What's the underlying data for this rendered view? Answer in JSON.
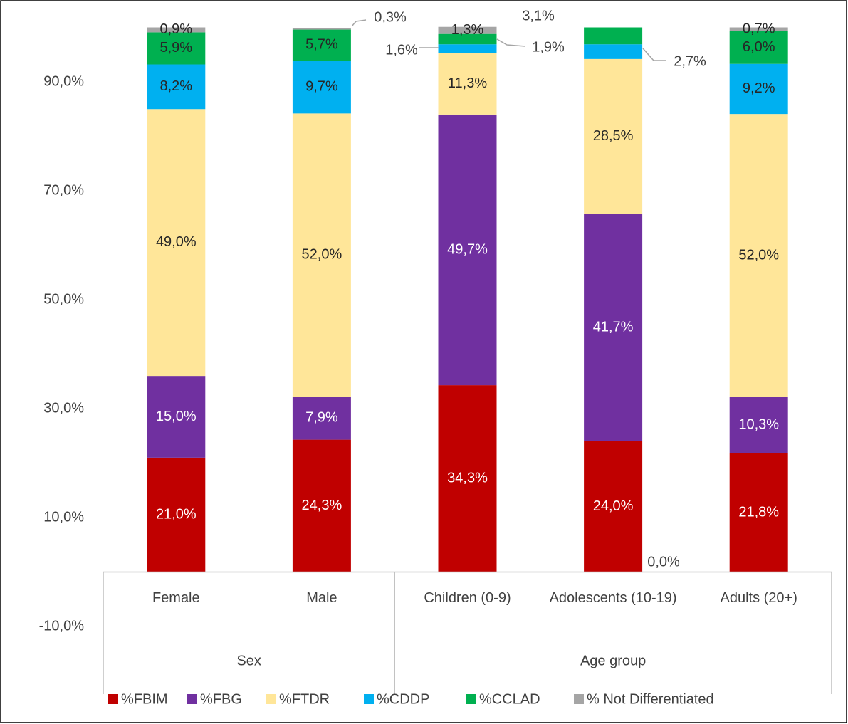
{
  "chart_data": {
    "type": "stacked-bar",
    "categories": [
      "Female",
      "Male",
      "Children (0-9)",
      "Adolescents (10-19)",
      "Adults (20+)"
    ],
    "groups": [
      "Sex",
      "Age group"
    ],
    "series": [
      {
        "name": "%FBIM",
        "color": "#c00000",
        "values": [
          21.0,
          24.3,
          34.3,
          24.0,
          21.8
        ],
        "value_labels": [
          "21,0%",
          "24,3%",
          "34,3%",
          "24,0%",
          "21,8%"
        ]
      },
      {
        "name": "%FBG",
        "color": "#7030a0",
        "values": [
          15.0,
          7.9,
          49.7,
          41.7,
          10.3
        ],
        "value_labels": [
          "15,0%",
          "7,9%",
          "49,7%",
          "41,7%",
          "10,3%"
        ]
      },
      {
        "name": "%FTDR",
        "color": "#ffe699",
        "values": [
          49.0,
          52.0,
          11.3,
          28.5,
          52.0
        ],
        "value_labels": [
          "49,0%",
          "52,0%",
          "11,3%",
          "28,5%",
          "52,0%"
        ]
      },
      {
        "name": "%CDDP",
        "color": "#00b0f0",
        "values": [
          8.2,
          9.7,
          1.6,
          2.7,
          9.2
        ],
        "value_labels": [
          "8,2%",
          "9,7%",
          "1,6%",
          "2,7%",
          "9,2%"
        ]
      },
      {
        "name": "%CCLAD",
        "color": "#00b050",
        "values": [
          5.9,
          5.7,
          1.9,
          3.1,
          6.0
        ],
        "value_labels": [
          "5,9%",
          "5,7%",
          "1,9%",
          "3,1%",
          "6,0%"
        ]
      },
      {
        "name": "% Not Differentiated",
        "color": "#a5a5a5",
        "values": [
          0.9,
          0.3,
          1.3,
          0.0,
          0.7
        ],
        "value_labels": [
          "0,9%",
          "0,3%",
          "1,3%",
          "0,0%",
          "0,7%"
        ]
      }
    ],
    "ylim": [
      -10,
      100
    ],
    "yticks": [
      {
        "value": -10,
        "label": "-10,0%"
      },
      {
        "value": 10,
        "label": "10,0%"
      },
      {
        "value": 30,
        "label": "30,0%"
      },
      {
        "value": 50,
        "label": "50,0%"
      },
      {
        "value": 70,
        "label": "70,0%"
      },
      {
        "value": 90,
        "label": "90,0%"
      }
    ],
    "grid": false,
    "legend": "bottom"
  }
}
